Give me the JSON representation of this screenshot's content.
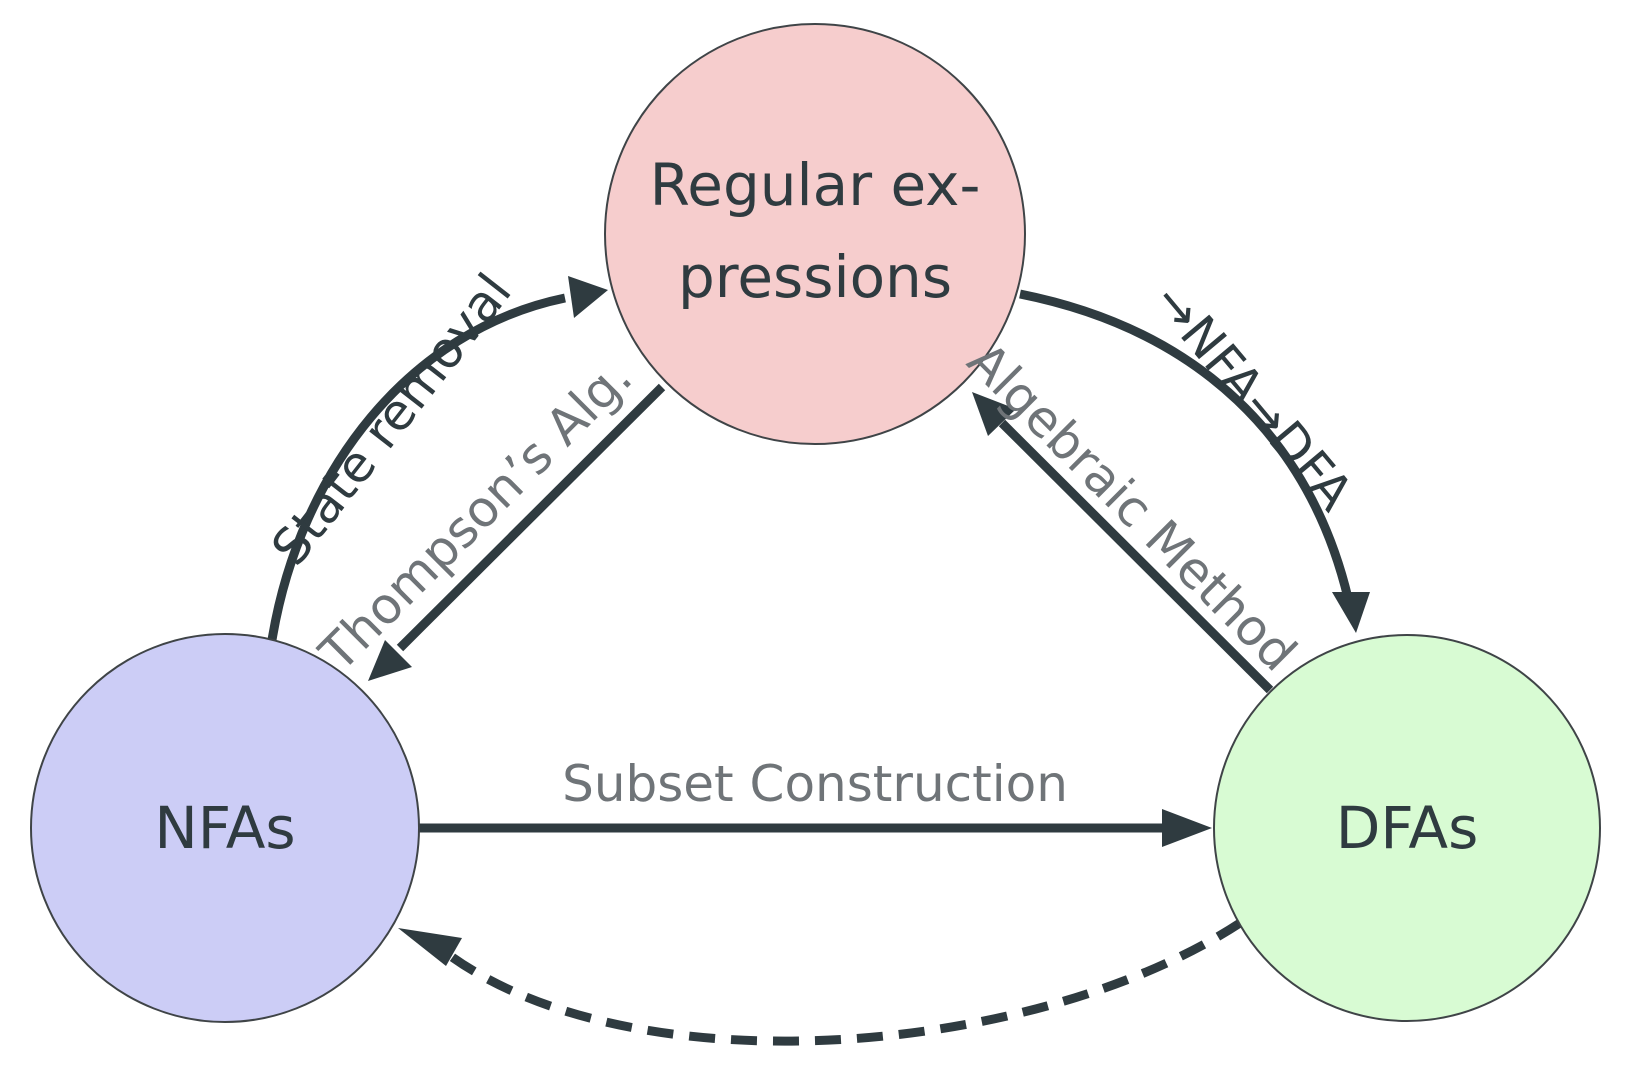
{
  "nodes": {
    "regex": {
      "line1": "Regular ex-",
      "line2": "pressions",
      "color": "#f6cdcd"
    },
    "nfa": {
      "label": "NFAs",
      "color": "#cccdf6"
    },
    "dfa": {
      "label": "DFAs",
      "color": "#d8fbd3"
    }
  },
  "edges": {
    "state_removal": "State removal",
    "thompson": "Thompson’s Alg.",
    "regex_to_dfa": "→NFA→DFA",
    "algebraic": "Algebraic Method",
    "subset": "Subset Construction"
  },
  "colors": {
    "stroke": "#2f3b40",
    "grey_text": "#6f7478"
  }
}
